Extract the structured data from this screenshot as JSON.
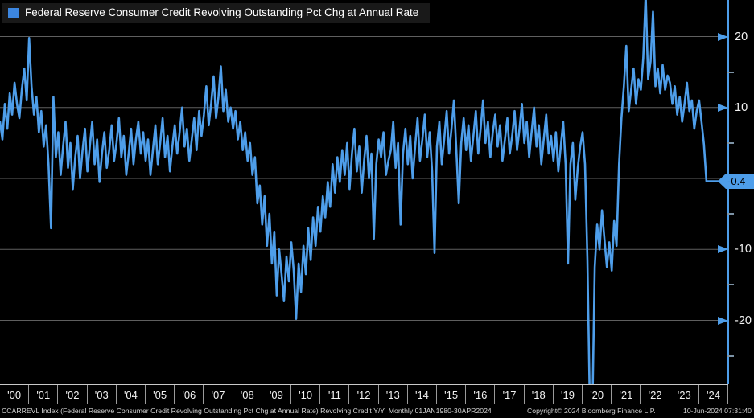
{
  "legend": {
    "label": "Federal Reserve Consumer Credit Revolving Outstanding Pct Chg at Annual Rate"
  },
  "colors": {
    "line": "#4e9eea",
    "swatch": "#3c86e0",
    "grid": "#5f5f5f",
    "minor_tick": "#7d93a6",
    "badge_bg": "#4e9eea",
    "badge_text": "#000000"
  },
  "y_axis": {
    "major_ticks": [
      "20",
      "10",
      "-10",
      "-20"
    ],
    "minor_ticks": [
      15,
      5,
      -5,
      -15,
      -25
    ],
    "last_value": -0.4,
    "last_value_label": "-0.4"
  },
  "x_axis": {
    "year_labels": [
      "'00",
      "'01",
      "'02",
      "'03",
      "'04",
      "'05",
      "'06",
      "'07",
      "'08",
      "'09",
      "'10",
      "'11",
      "'12",
      "'13",
      "'14",
      "'15",
      "'16",
      "'17",
      "'18",
      "'19",
      "'20",
      "'21",
      "'22",
      "'23",
      "'24"
    ]
  },
  "footer": {
    "left": "CCARREVL Index (Federal Reserve Consumer Credit Revolving Outstanding Pct Chg at Annual Rate) Revolving Credit Y/Y  Monthly 01JAN1980-30APR2024",
    "copyright": "Copyright© 2024 Bloomberg Finance L.P.",
    "timestamp": "10-Jun-2024 07:31:40"
  },
  "chart_data": {
    "type": "line",
    "title": "Federal Reserve Consumer Credit Revolving Outstanding Pct Chg at Annual Rate",
    "series_name": "CCARREVL Index (Revolving Credit Y/Y, Pct Chg at Annual Rate)",
    "frequency": "monthly",
    "x_start": "2000-01",
    "x_end": "2024-04",
    "units": "percent",
    "ylim": [
      -29,
      25.2
    ],
    "y_gridlines": [
      20,
      10,
      0,
      -10,
      -20
    ],
    "yticks_labeled": [
      20,
      10,
      -10,
      -20
    ],
    "grid": true,
    "legend_position": "top-left",
    "last_value": -0.4,
    "values": [
      8.0,
      5.5,
      10.5,
      7.0,
      12.0,
      9.0,
      13.5,
      10.5,
      8.5,
      12.5,
      15.5,
      11.0,
      19.8,
      13.0,
      9.0,
      11.5,
      6.5,
      9.5,
      4.5,
      7.5,
      2.0,
      -7.0,
      11.5,
      3.0,
      6.5,
      0.5,
      4.5,
      8.0,
      1.5,
      5.0,
      -1.5,
      3.0,
      6.0,
      0.0,
      4.0,
      7.0,
      1.0,
      4.5,
      8.0,
      2.0,
      5.5,
      -0.5,
      3.5,
      6.5,
      1.5,
      4.0,
      7.5,
      2.5,
      5.0,
      8.5,
      3.0,
      6.0,
      0.5,
      3.5,
      7.0,
      2.0,
      5.5,
      8.0,
      3.5,
      6.5,
      2.5,
      5.5,
      0.5,
      4.0,
      7.5,
      2.0,
      5.0,
      8.5,
      3.0,
      6.0,
      1.0,
      4.5,
      7.5,
      3.5,
      6.5,
      10.0,
      4.5,
      7.0,
      2.5,
      5.5,
      8.5,
      4.0,
      9.5,
      6.0,
      9.0,
      13.0,
      7.5,
      10.5,
      14.4,
      8.5,
      11.5,
      15.8,
      9.5,
      12.5,
      8.0,
      10.0,
      7.0,
      9.5,
      5.5,
      8.0,
      4.0,
      6.5,
      2.5,
      5.0,
      0.5,
      3.0,
      -3.5,
      -1.0,
      -6.5,
      -2.5,
      -9.5,
      -5.0,
      -12.0,
      -7.5,
      -16.5,
      -10.0,
      -13.5,
      -17.3,
      -11.0,
      -14.5,
      -9.0,
      -13.0,
      -19.8,
      -12.0,
      -16.0,
      -9.5,
      -13.5,
      -7.0,
      -11.5,
      -5.5,
      -9.5,
      -4.0,
      -7.5,
      -2.5,
      -5.5,
      -0.5,
      -4.0,
      2.0,
      -2.0,
      3.0,
      -0.5,
      4.0,
      0.5,
      5.0,
      -1.5,
      3.5,
      7.0,
      1.0,
      4.5,
      -2.0,
      2.5,
      6.0,
      0.0,
      3.5,
      -8.5,
      2.0,
      5.5,
      3.0,
      6.5,
      0.5,
      2.5,
      4.0,
      8.0,
      1.5,
      5.0,
      -6.5,
      3.5,
      7.0,
      2.0,
      6.0,
      0.0,
      4.5,
      8.5,
      2.5,
      5.5,
      9.0,
      3.0,
      6.5,
      1.0,
      -10.5,
      4.5,
      8.0,
      2.0,
      5.5,
      9.5,
      3.5,
      7.0,
      11.0,
      4.0,
      -3.5,
      5.0,
      8.5,
      4.0,
      7.5,
      2.5,
      6.0,
      9.5,
      3.5,
      7.0,
      11.0,
      5.0,
      8.0,
      3.0,
      6.5,
      9.0,
      4.5,
      7.5,
      2.5,
      5.5,
      8.5,
      3.5,
      6.0,
      9.5,
      4.0,
      7.0,
      10.5,
      5.0,
      8.0,
      3.0,
      6.5,
      10.0,
      4.5,
      7.5,
      2.0,
      5.5,
      9.0,
      3.5,
      6.0,
      2.5,
      6.5,
      1.0,
      4.5,
      8.0,
      2.0,
      -12.0,
      2.0,
      5.0,
      -3.0,
      1.5,
      4.5,
      6.5,
      2.0,
      -11.5,
      -32.0,
      -33.0,
      -12.5,
      -6.5,
      -10.0,
      -4.5,
      -8.5,
      -12.5,
      -9.0,
      -13.0,
      -6.0,
      -9.5,
      2.0,
      8.5,
      13.0,
      18.7,
      9.5,
      12.5,
      15.5,
      10.5,
      14.0,
      12.5,
      17.0,
      26.0,
      14.0,
      16.5,
      23.5,
      13.0,
      15.5,
      12.0,
      16.0,
      12.5,
      14.5,
      13.5,
      10.5,
      13.0,
      9.0,
      11.5,
      8.0,
      10.5,
      13.5,
      9.5,
      11.0,
      7.0,
      9.5,
      11.0,
      8.0,
      4.8,
      -0.4
    ]
  }
}
